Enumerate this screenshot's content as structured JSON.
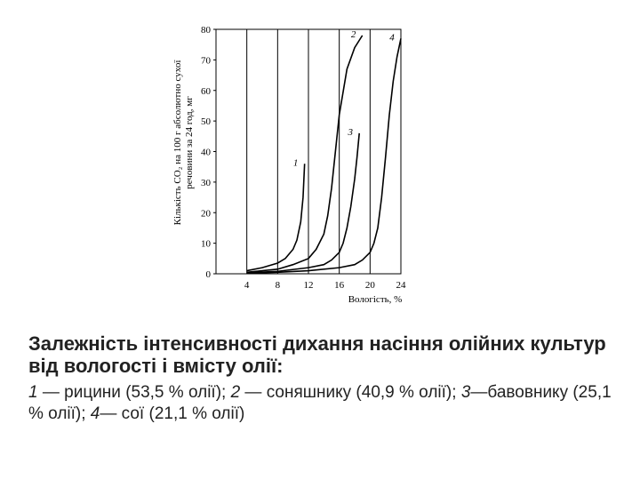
{
  "chart_data": {
    "type": "line",
    "ylabel": [
      "Кількість CO₂ на 100 г абсолютно сухої",
      "речовини за 24 год, мг"
    ],
    "xlabel": "Вологість, %",
    "xlim": [
      0,
      24
    ],
    "xticks": [
      4,
      8,
      12,
      16,
      20,
      24
    ],
    "ylim": [
      0,
      80
    ],
    "yticks": [
      0,
      10,
      20,
      30,
      40,
      50,
      60,
      70,
      80
    ],
    "grid": true,
    "color": "#000000",
    "series": [
      {
        "name": "1",
        "x": [
          4,
          6,
          8,
          9,
          10,
          10.5,
          11,
          11.3,
          11.5
        ],
        "values": [
          1,
          2,
          3.5,
          5,
          8,
          11,
          17,
          25,
          36
        ]
      },
      {
        "name": "2",
        "x": [
          4,
          8,
          10,
          12,
          13,
          14,
          14.5,
          15,
          15.5,
          16,
          17,
          18,
          19
        ],
        "values": [
          0.5,
          1.5,
          3,
          5,
          8,
          13,
          19,
          28,
          40,
          52,
          67,
          74,
          78
        ]
      },
      {
        "name": "3",
        "x": [
          4,
          8,
          12,
          14,
          15,
          16,
          16.5,
          17,
          17.5,
          18,
          18.3,
          18.6
        ],
        "values": [
          0.3,
          0.8,
          2,
          3,
          4.5,
          7,
          10,
          15,
          22,
          31,
          38,
          46
        ]
      },
      {
        "name": "4",
        "x": [
          4,
          8,
          12,
          16,
          18,
          19,
          20,
          20.5,
          21,
          21.5,
          22,
          22.5,
          23,
          23.5,
          24
        ],
        "values": [
          0.2,
          0.5,
          1,
          2,
          3,
          4.5,
          7,
          10,
          15,
          25,
          38,
          52,
          63,
          71,
          77
        ]
      }
    ]
  },
  "caption": {
    "title": "Залежність інтенсивності дихання насіння олійних культур від вологості і вмісту олії:",
    "items": [
      {
        "num": "1",
        "text": " — рицини (53,5 % олії);"
      },
      {
        "num": "2",
        "text": " — соняшнику (40,9 % олії);"
      },
      {
        "num": "3",
        "text": "—бавовнику (25,1 % олії);"
      },
      {
        "num": "4",
        "text": "— сої (21,1 % олії)"
      }
    ]
  }
}
